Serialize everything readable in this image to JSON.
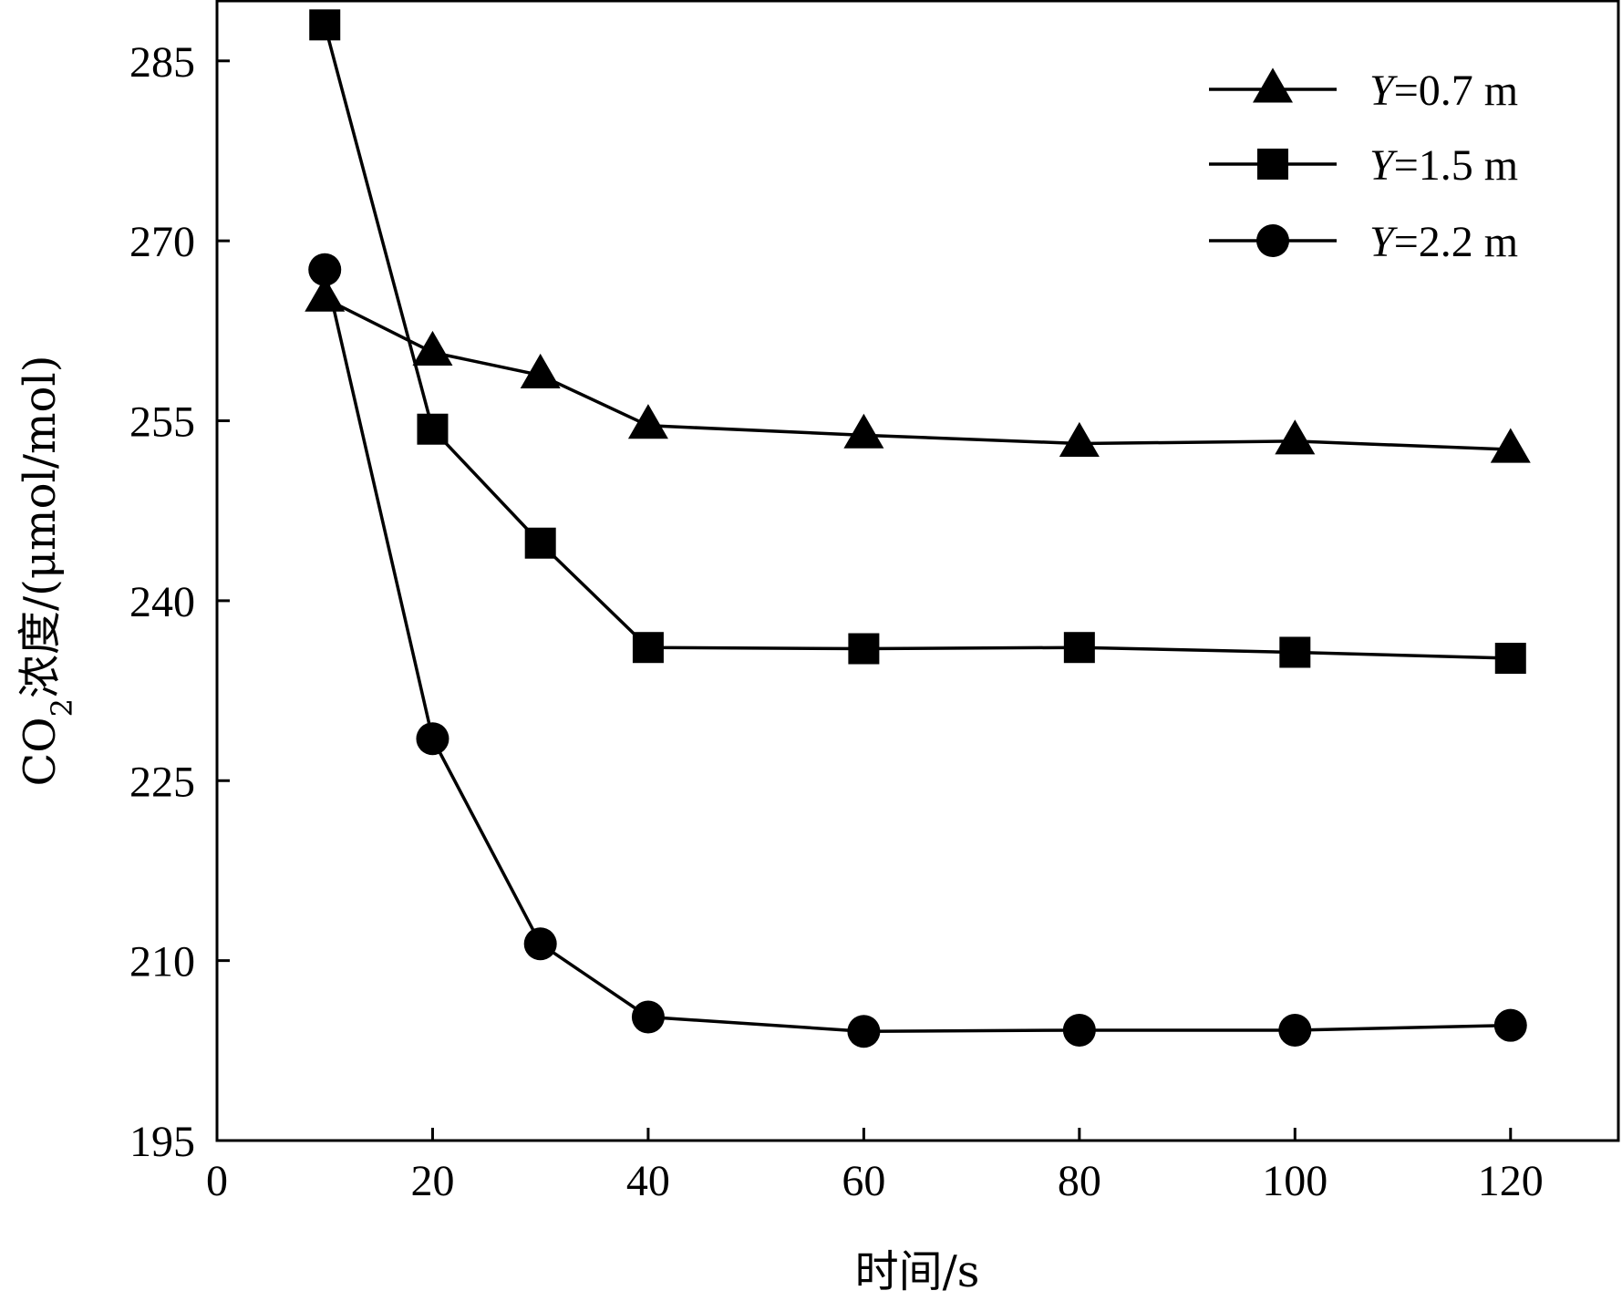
{
  "chart_data": {
    "type": "line",
    "title": "",
    "xlabel": "时间/s",
    "ylabel": {
      "prefix": "CO",
      "subscript": "2",
      "suffix": "浓度/(μmol/mol)"
    },
    "xlim": [
      0,
      130
    ],
    "ylim": [
      195,
      290
    ],
    "xticks": [
      "0",
      "20",
      "40",
      "60",
      "80",
      "100",
      "120"
    ],
    "yticks": [
      "195",
      "210",
      "225",
      "240",
      "255",
      "270",
      "285"
    ],
    "grid": false,
    "legend_position": "top-right",
    "x": [
      10,
      20,
      30,
      40,
      60,
      80,
      100,
      120
    ],
    "series": [
      {
        "name": {
          "italic": "Y",
          "rest": "=0.7 m"
        },
        "marker": "triangle",
        "values": [
          265.2,
          260.7,
          258.8,
          254.6,
          253.8,
          253.1,
          253.3,
          252.6
        ]
      },
      {
        "name": {
          "italic": "Y",
          "rest": "=1.5 m"
        },
        "marker": "square",
        "values": [
          288.0,
          254.3,
          244.8,
          236.1,
          236.0,
          236.1,
          235.7,
          235.2
        ]
      },
      {
        "name": {
          "italic": "Y",
          "rest": "=2.2 m"
        },
        "marker": "circle",
        "values": [
          267.6,
          228.5,
          211.4,
          205.3,
          204.1,
          204.2,
          204.2,
          204.6
        ]
      }
    ],
    "colors": {
      "line": "#000000",
      "marker": "#000000",
      "axis": "#000000"
    }
  }
}
